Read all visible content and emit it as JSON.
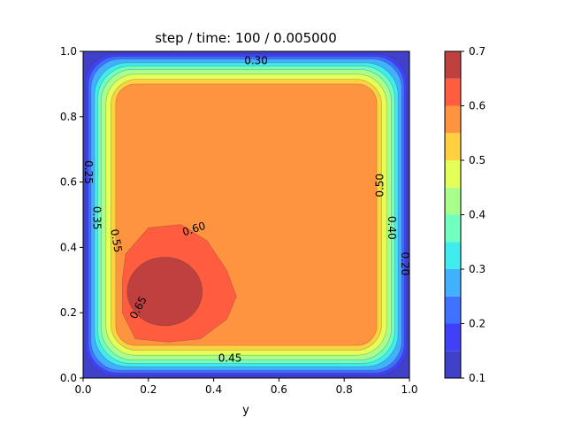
{
  "chart_data": {
    "type": "heatmap",
    "subtype": "filled-contour",
    "title": "step / time:  100 /   0.005000",
    "xlabel": "y",
    "ylabel": "",
    "xlim": [
      0,
      1
    ],
    "ylim": [
      0,
      1
    ],
    "xticks": [
      "0.0",
      "0.2",
      "0.4",
      "0.6",
      "0.8",
      "1.0"
    ],
    "yticks": [
      "0.0",
      "0.2",
      "0.4",
      "0.6",
      "0.8",
      "1.0"
    ],
    "grid": false,
    "colormap": "jet",
    "levels": [
      0.1,
      0.15,
      0.2,
      0.25,
      0.3,
      0.35,
      0.4,
      0.45,
      0.5,
      0.55,
      0.6,
      0.65,
      0.7
    ],
    "level_colors": [
      "#4040c8",
      "#4040f8",
      "#4070ff",
      "#40b0ff",
      "#40ecec",
      "#70ffc0",
      "#a8ff8c",
      "#e4ff58",
      "#ffd040",
      "#ff9440",
      "#ff5c40",
      "#c04040"
    ],
    "colorbar": {
      "position": "right",
      "ticks": [
        "0.1",
        "0.2",
        "0.3",
        "0.4",
        "0.5",
        "0.6",
        "0.7"
      ]
    },
    "contours": [
      {
        "level": 0.15,
        "x0": 0.008,
        "y0": 0.008,
        "x1": 0.992,
        "y1": 0.992,
        "r": 0.09
      },
      {
        "level": 0.2,
        "x0": 0.016,
        "y0": 0.016,
        "x1": 0.984,
        "y1": 0.984,
        "r": 0.09
      },
      {
        "level": 0.25,
        "x0": 0.024,
        "y0": 0.024,
        "x1": 0.976,
        "y1": 0.976,
        "r": 0.09
      },
      {
        "level": 0.3,
        "x0": 0.035,
        "y0": 0.035,
        "x1": 0.965,
        "y1": 0.965,
        "r": 0.1
      },
      {
        "level": 0.35,
        "x0": 0.045,
        "y0": 0.045,
        "x1": 0.955,
        "y1": 0.955,
        "r": 0.1
      },
      {
        "level": 0.4,
        "x0": 0.055,
        "y0": 0.055,
        "x1": 0.945,
        "y1": 0.945,
        "r": 0.1
      },
      {
        "level": 0.45,
        "x0": 0.07,
        "y0": 0.07,
        "x1": 0.93,
        "y1": 0.93,
        "r": 0.09
      },
      {
        "level": 0.5,
        "x0": 0.085,
        "y0": 0.085,
        "x1": 0.915,
        "y1": 0.915,
        "r": 0.08
      },
      {
        "level": 0.55,
        "x0": 0.1,
        "y0": 0.1,
        "x1": 0.9,
        "y1": 0.9,
        "r": 0.06
      }
    ],
    "contour_labels": [
      {
        "text": "0.30",
        "x": 0.53,
        "y": 0.97,
        "angle": 0
      },
      {
        "text": "0.25",
        "x": 0.015,
        "y": 0.63,
        "angle": -90
      },
      {
        "text": "0.35",
        "x": 0.04,
        "y": 0.49,
        "angle": -90
      },
      {
        "text": "0.55",
        "x": 0.1,
        "y": 0.42,
        "angle": -80
      },
      {
        "text": "0.60",
        "x": 0.34,
        "y": 0.455,
        "angle": 18
      },
      {
        "text": "0.65",
        "x": 0.17,
        "y": 0.215,
        "angle": 62
      },
      {
        "text": "0.45",
        "x": 0.45,
        "y": 0.06,
        "angle": 0
      },
      {
        "text": "0.50",
        "x": 0.91,
        "y": 0.59,
        "angle": 90
      },
      {
        "text": "0.40",
        "x": 0.945,
        "y": 0.46,
        "angle": -90
      },
      {
        "text": "0.20",
        "x": 0.985,
        "y": 0.35,
        "angle": -90
      }
    ]
  }
}
